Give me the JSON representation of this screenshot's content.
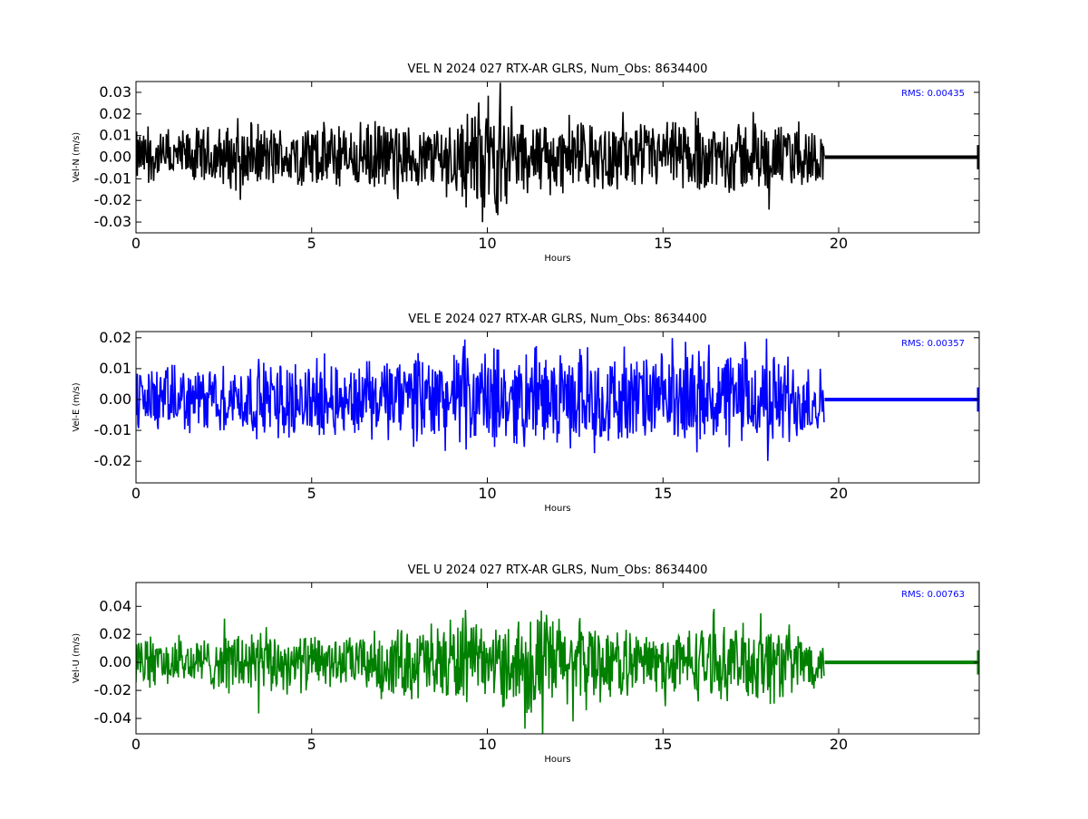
{
  "chart_data": [
    {
      "type": "line",
      "title": "VEL N 2024 027 RTX-AR  GLRS, Num_Obs: 8634400",
      "xlabel": "Hours",
      "ylabel": "Vel-N (m/s)",
      "xlim": [
        0,
        24
      ],
      "ylim": [
        -0.035,
        0.035
      ],
      "xticks": [
        "0",
        "5",
        "10",
        "15",
        "20"
      ],
      "yticks": [
        "-0.03",
        "-0.02",
        "-0.01",
        "0.00",
        "0.01",
        "0.02",
        "0.03"
      ],
      "annotation": "RMS:  0.00435",
      "color": "#000000",
      "annotation_color": "#0000ff",
      "series": [
        {
          "x": [
            0,
            1,
            2,
            3,
            4,
            5,
            6,
            7,
            8,
            9,
            9.5,
            10,
            10.5,
            11,
            12,
            13,
            14,
            15,
            16,
            17,
            18,
            19,
            19.6,
            19.7,
            24
          ],
          "envelope": [
            0.014,
            0.013,
            0.016,
            0.017,
            0.016,
            0.018,
            0.017,
            0.019,
            0.016,
            0.022,
            0.027,
            0.033,
            0.028,
            0.02,
            0.018,
            0.017,
            0.017,
            0.018,
            0.019,
            0.02,
            0.018,
            0.016,
            0.012,
            0.001,
            0.001
          ],
          "values": [
            0.0,
            0.0,
            0.0,
            0.0,
            0.0,
            0.0,
            0.0,
            0.0,
            0.0,
            0.0,
            0.0,
            0.0,
            0.0,
            0.0,
            0.0,
            0.0,
            0.0,
            0.0,
            0.0,
            0.0,
            0.0,
            0.0,
            0.0,
            0.0,
            0.0
          ]
        }
      ]
    },
    {
      "type": "line",
      "title": "VEL E 2024 027 RTX-AR  GLRS, Num_Obs: 8634400",
      "xlabel": "Hours",
      "ylabel": "Vel-E (m/s)",
      "xlim": [
        0,
        24
      ],
      "ylim": [
        -0.027,
        0.022
      ],
      "xticks": [
        "0",
        "5",
        "10",
        "15",
        "20"
      ],
      "yticks": [
        "-0.02",
        "-0.01",
        "0.00",
        "0.01",
        "0.02"
      ],
      "annotation": "RMS:  0.00357",
      "color": "#0000ff",
      "annotation_color": "#0000ff",
      "series": [
        {
          "x": [
            0,
            1,
            2,
            3,
            4,
            5,
            6,
            7,
            8,
            9,
            10,
            11,
            12,
            13,
            14,
            15,
            16,
            17,
            18,
            19,
            19.6,
            19.7,
            24
          ],
          "envelope": [
            0.012,
            0.012,
            0.012,
            0.013,
            0.015,
            0.014,
            0.013,
            0.014,
            0.017,
            0.017,
            0.018,
            0.016,
            0.016,
            0.017,
            0.016,
            0.016,
            0.018,
            0.018,
            0.017,
            0.016,
            0.011,
            0.001,
            0.001
          ],
          "values": [
            0.0,
            0.0,
            0.0,
            0.0,
            0.0,
            0.0,
            0.0,
            0.0,
            0.0,
            0.0,
            0.0,
            0.0,
            0.0,
            0.0,
            0.0,
            0.0,
            0.0,
            0.0,
            0.0,
            0.0,
            0.0,
            0.0,
            0.0
          ]
        }
      ]
    },
    {
      "type": "line",
      "title": "VEL U 2024 027 RTX-AR  GLRS, Num_Obs: 8634400",
      "xlabel": "Hours",
      "ylabel": "Vel-U (m/s)",
      "xlim": [
        0,
        24
      ],
      "ylim": [
        -0.051,
        0.057
      ],
      "xticks": [
        "0",
        "5",
        "10",
        "15",
        "20"
      ],
      "yticks": [
        "-0.04",
        "-0.02",
        "0.00",
        "0.02",
        "0.04"
      ],
      "annotation": "RMS:  0.00763",
      "color": "#008000",
      "annotation_color": "#0000ff",
      "series": [
        {
          "x": [
            0,
            1,
            2,
            3,
            4,
            5,
            6,
            7,
            8,
            9,
            10,
            11,
            11.5,
            12,
            13,
            14,
            15,
            16,
            17,
            18,
            19,
            19.6,
            19.7,
            24
          ],
          "envelope": [
            0.022,
            0.02,
            0.02,
            0.028,
            0.026,
            0.022,
            0.02,
            0.026,
            0.03,
            0.038,
            0.024,
            0.042,
            0.045,
            0.038,
            0.034,
            0.026,
            0.024,
            0.03,
            0.028,
            0.036,
            0.025,
            0.015,
            0.001,
            0.001
          ],
          "values": [
            0.0,
            0.0,
            0.0,
            0.0,
            0.0,
            0.0,
            0.0,
            0.0,
            0.0,
            0.0,
            0.0,
            0.0,
            0.0,
            0.0,
            0.0,
            0.0,
            0.0,
            0.0,
            0.0,
            0.0,
            0.0,
            0.0,
            0.0,
            0.0
          ]
        }
      ]
    }
  ]
}
